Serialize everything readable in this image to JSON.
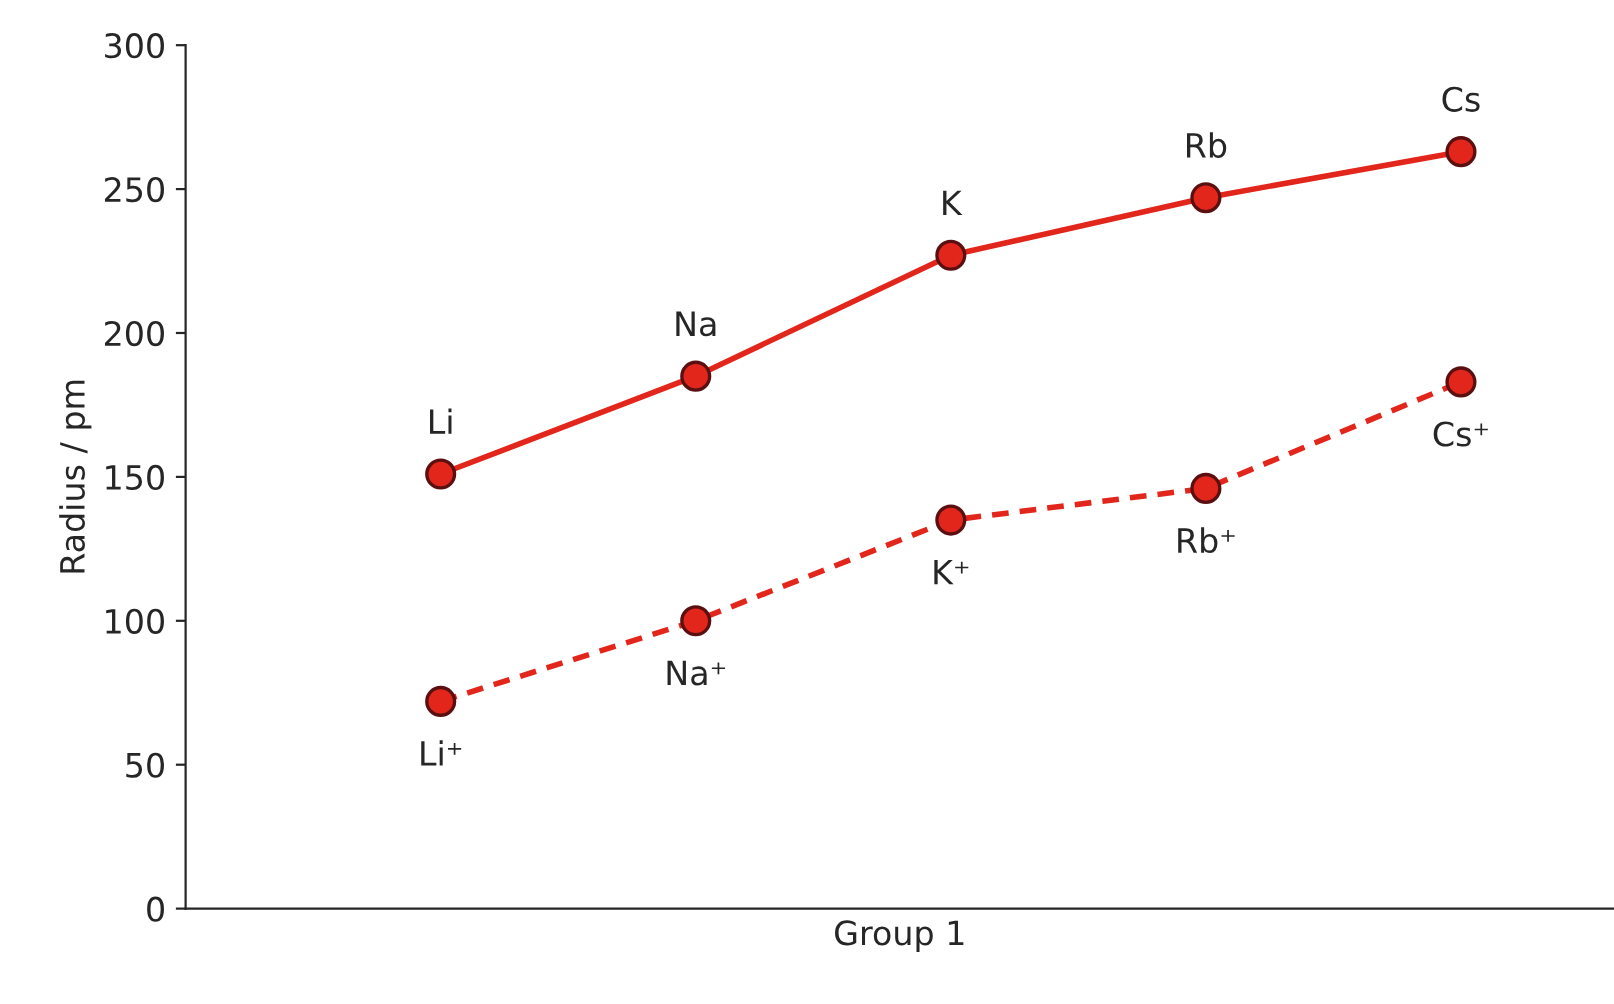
{
  "chart_data": {
    "type": "line",
    "xlabel": "Group 1",
    "ylabel": "Radius / pm",
    "categories": [
      null,
      null,
      null,
      null,
      null
    ],
    "series": [
      {
        "color": "#e3261b",
        "values": [
          151,
          185,
          227,
          247,
          263
        ],
        "line_style": "solid"
      },
      {
        "color": "#e3261b",
        "values": [
          72,
          100,
          135,
          146,
          183
        ],
        "line_style": "dashed"
      }
    ],
    "ylim": [
      0,
      300
    ],
    "yticks": [
      0,
      50,
      100,
      150,
      200,
      250,
      300
    ],
    "grid": false,
    "legend": false,
    "marker": "circle",
    "tick_labels": "y",
    "annotations": [
      {
        "text": "Li",
        "y": 151
      },
      {
        "text": "Na",
        "y": 185
      },
      {
        "text": "K",
        "y": 227
      },
      {
        "text": "Rb",
        "y": 247
      },
      {
        "text": "Cs",
        "y": 263
      },
      {
        "text": "Li⁺",
        "y": 72
      },
      {
        "text": "Na⁺",
        "y": 100
      },
      {
        "text": "K⁺",
        "y": 135
      },
      {
        "text": "Rb⁺",
        "y": 146
      },
      {
        "text": "Cs⁺",
        "y": 183
      }
    ]
  }
}
